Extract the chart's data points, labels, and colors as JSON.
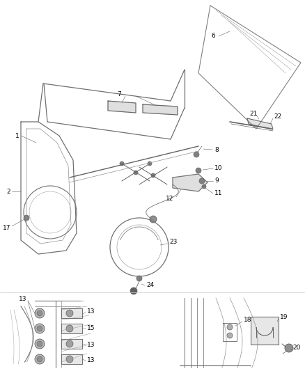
{
  "bg_color": "#ffffff",
  "line_color": "#646464",
  "text_color": "#000000",
  "figsize": [
    4.38,
    5.33
  ],
  "dpi": 100,
  "lw_main": 0.9,
  "lw_thin": 0.5,
  "font_size": 6.5
}
